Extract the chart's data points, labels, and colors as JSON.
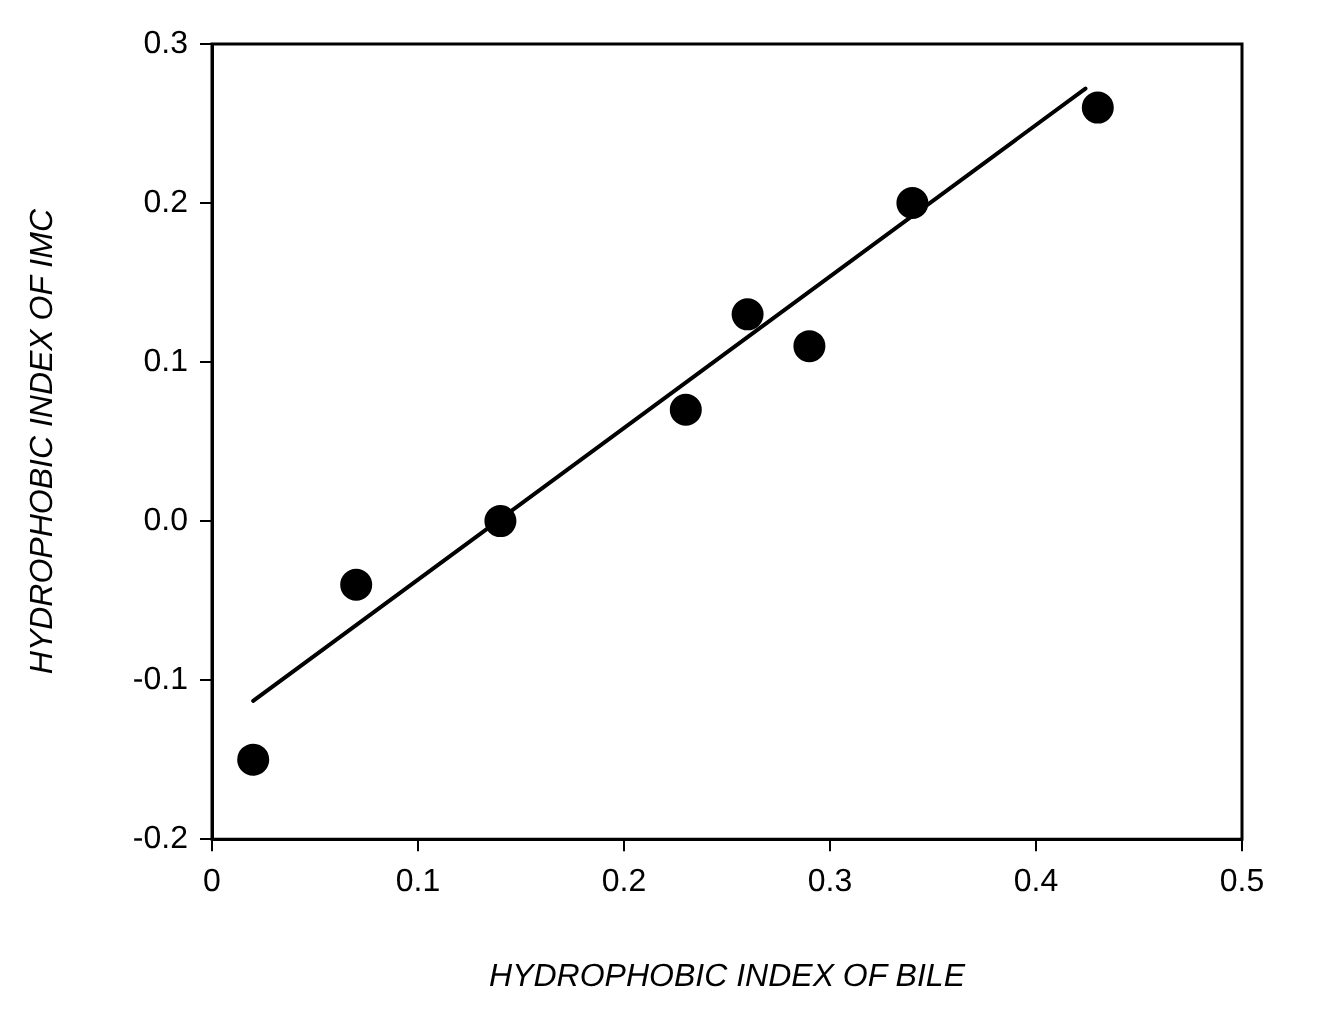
{
  "chart_data": {
    "type": "scatter",
    "xlabel": "HYDROPHOBIC INDEX OF BILE",
    "ylabel": "HYDROPHOBIC INDEX OF IMC",
    "xlim": [
      0,
      0.5
    ],
    "xticks": [
      0,
      0.1,
      0.2,
      0.3,
      0.4,
      0.5
    ],
    "ylim": [
      -0.2,
      0.3
    ],
    "yticks": [
      {
        "value": -0.2,
        "label": "-0.2"
      },
      {
        "value": -0.1,
        "label": "-0.1"
      },
      {
        "value": 0,
        "label": "0.0"
      },
      0.1,
      0.2,
      0.3
    ],
    "grid": false,
    "legend": false,
    "series": [
      {
        "type": "scatter",
        "color": "#000000",
        "marker": "circle",
        "x": [
          0.02,
          0.07,
          0.14,
          0.23,
          0.26,
          0.29,
          0.34,
          0.43
        ],
        "values": [
          -0.15,
          -0.04,
          0.0,
          0.07,
          0.13,
          0.11,
          0.2,
          0.26
        ]
      },
      {
        "type": "line",
        "color": "#000000",
        "marker": "none",
        "line_style": "solid",
        "x": [
          0.02,
          0.424
        ],
        "values": [
          -0.113,
          0.272
        ]
      }
    ]
  }
}
